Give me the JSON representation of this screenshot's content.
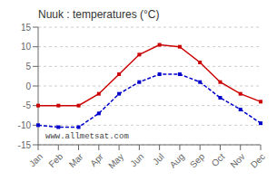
{
  "chart_data": {
    "type": "line",
    "title": "Nuuk : temperatures (°C)",
    "categories": [
      "Jan",
      "Feb",
      "Mar",
      "Apr",
      "May",
      "Jun",
      "Jul",
      "Aug",
      "Sep",
      "Oct",
      "Nov",
      "Dec"
    ],
    "series": [
      {
        "color": "#cc0000",
        "values": [
          -5,
          -5,
          -5,
          -2,
          3,
          8,
          10.5,
          10,
          6,
          1,
          -2,
          -4
        ],
        "marker": "square",
        "line_style": "solid"
      },
      {
        "color": "#0000cc",
        "values": [
          -10,
          -10.5,
          -10.5,
          -7,
          -2,
          1,
          3,
          3,
          1,
          -3,
          -6,
          -9.5
        ],
        "marker": "square",
        "line_style": "dashed"
      }
    ],
    "ylim": [
      -15,
      15
    ],
    "yticks": [
      -15,
      -10,
      -5,
      0,
      5,
      10,
      15
    ],
    "grid": "y",
    "annotations": [
      "www.allmetsat.com"
    ]
  }
}
